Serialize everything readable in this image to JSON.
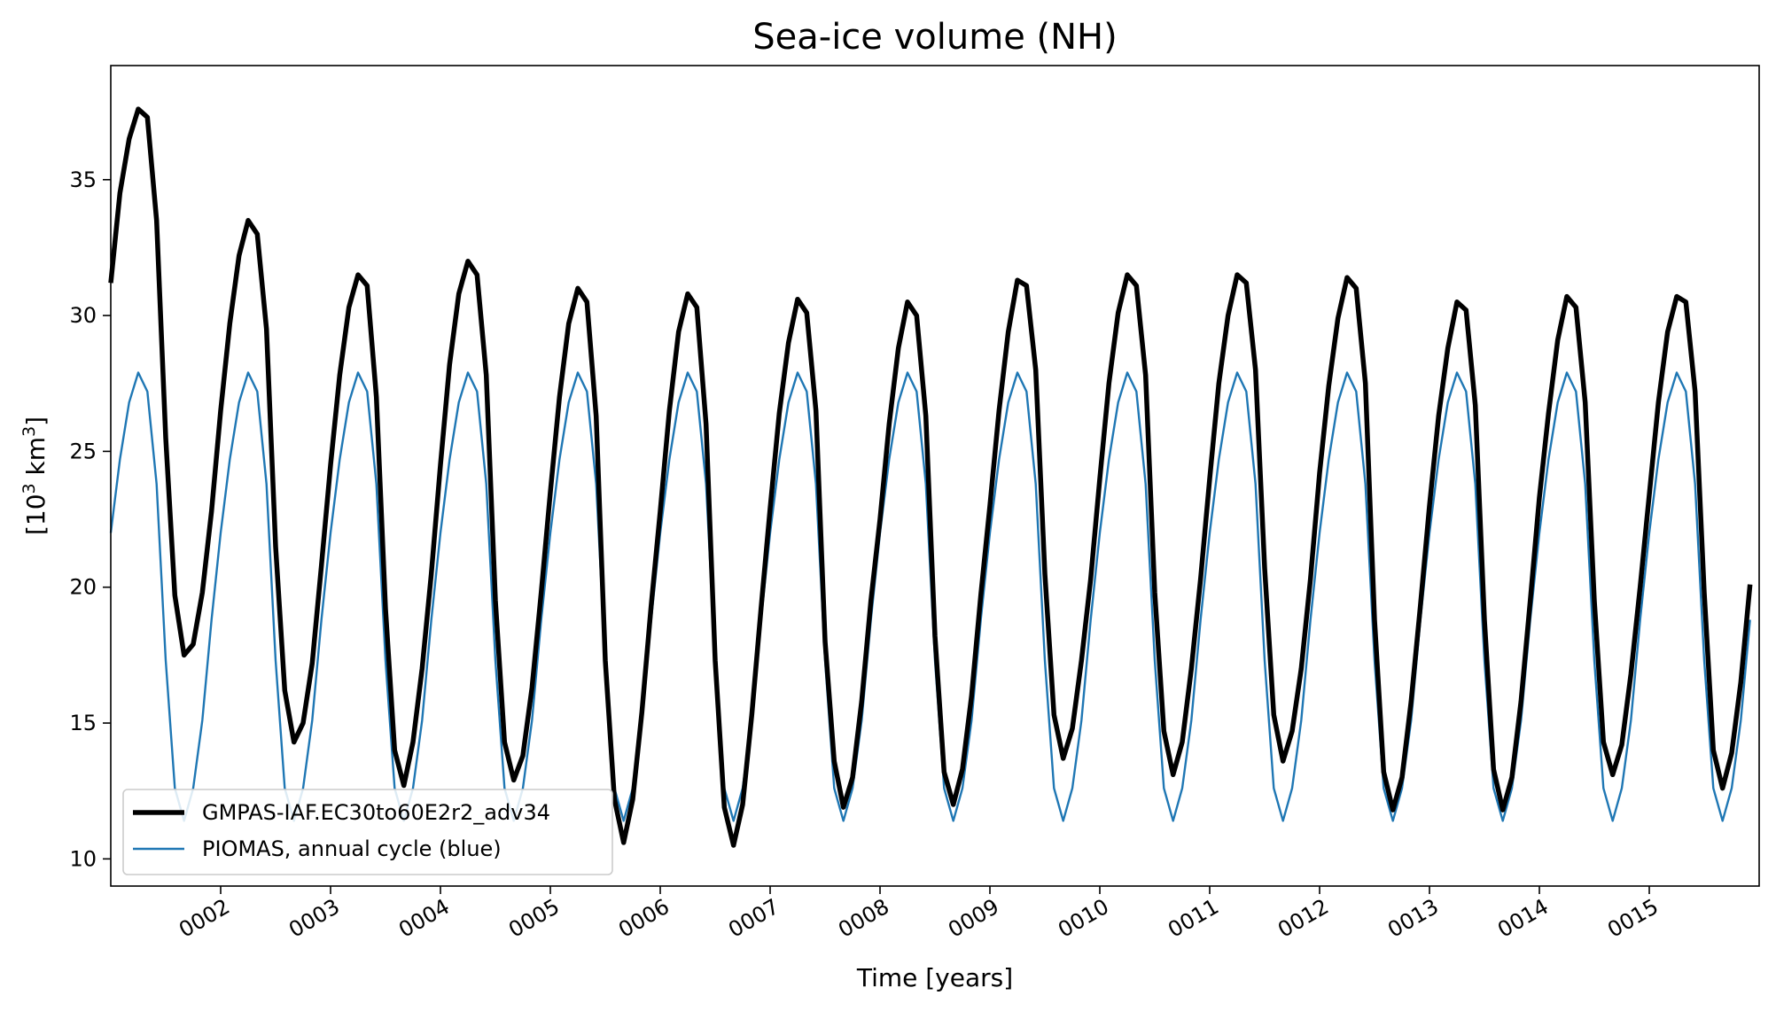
{
  "chart_data": {
    "type": "line",
    "title": "Sea-ice volume (NH)",
    "xlabel": "Time [years]",
    "ylabel_main": "[10",
    "ylabel_sup": "3",
    "ylabel_tail": " km",
    "ylabel_sup2": "3",
    "ylabel_close": "]",
    "xlim": [
      1.0,
      16.0
    ],
    "ylim": [
      9.0,
      39.2
    ],
    "y_ticks": [
      10,
      15,
      20,
      25,
      30,
      35
    ],
    "x_ticks": [
      {
        "value": 2,
        "label": "0002"
      },
      {
        "value": 3,
        "label": "0003"
      },
      {
        "value": 4,
        "label": "0004"
      },
      {
        "value": 5,
        "label": "0005"
      },
      {
        "value": 6,
        "label": "0006"
      },
      {
        "value": 7,
        "label": "0007"
      },
      {
        "value": 8,
        "label": "0008"
      },
      {
        "value": 9,
        "label": "0009"
      },
      {
        "value": 10,
        "label": "0010"
      },
      {
        "value": 11,
        "label": "0011"
      },
      {
        "value": 12,
        "label": "0012"
      },
      {
        "value": 13,
        "label": "0013"
      },
      {
        "value": 14,
        "label": "0014"
      },
      {
        "value": 15,
        "label": "0015"
      }
    ],
    "grid": false,
    "legend_position": "lower-left",
    "months_per_year": 12,
    "start_year": 1.0,
    "series": [
      {
        "name": "GMPAS-IAF.EC30to60E2r2_adv34",
        "color": "#000000",
        "style": "thick",
        "yearly_values": [
          [
            31.2,
            34.5,
            36.5,
            37.6,
            37.3,
            33.5,
            25.5,
            19.7,
            17.5,
            17.9,
            19.8,
            22.8
          ],
          [
            26.5,
            29.7,
            32.2,
            33.5,
            33.0,
            29.5,
            21.5,
            16.2,
            14.3,
            15.0,
            17.2,
            20.8
          ],
          [
            24.5,
            27.8,
            30.3,
            31.5,
            31.1,
            27.0,
            19.2,
            14.0,
            12.7,
            14.3,
            17.0,
            20.5
          ],
          [
            24.5,
            28.2,
            30.8,
            32.0,
            31.5,
            27.8,
            19.5,
            14.3,
            12.9,
            13.8,
            16.3,
            19.8
          ],
          [
            23.5,
            27.0,
            29.7,
            31.0,
            30.5,
            26.3,
            17.3,
            12.2,
            10.6,
            12.2,
            15.4,
            19.3
          ],
          [
            22.8,
            26.5,
            29.4,
            30.8,
            30.3,
            26.0,
            17.3,
            11.9,
            10.5,
            12.0,
            15.3,
            19.2
          ],
          [
            22.9,
            26.4,
            29.0,
            30.6,
            30.1,
            26.5,
            18.0,
            13.6,
            11.9,
            13.0,
            15.8,
            19.5
          ],
          [
            22.5,
            26.0,
            28.8,
            30.5,
            30.0,
            26.3,
            18.2,
            13.2,
            12.0,
            13.3,
            16.0,
            19.7
          ],
          [
            23.0,
            26.5,
            29.4,
            31.3,
            31.1,
            28.0,
            20.5,
            15.3,
            13.7,
            14.8,
            17.3,
            20.3
          ],
          [
            24.0,
            27.5,
            30.1,
            31.5,
            31.1,
            27.8,
            19.8,
            14.7,
            13.1,
            14.3,
            17.0,
            20.3
          ],
          [
            24.0,
            27.5,
            30.0,
            31.5,
            31.2,
            28.0,
            20.7,
            15.3,
            13.6,
            14.7,
            17.0,
            20.3
          ],
          [
            24.2,
            27.4,
            29.9,
            31.4,
            31.0,
            27.5,
            18.8,
            13.2,
            11.8,
            13.0,
            15.8,
            19.3
          ],
          [
            23.0,
            26.3,
            28.8,
            30.5,
            30.2,
            26.7,
            18.8,
            13.3,
            11.8,
            13.0,
            15.8,
            19.5
          ],
          [
            23.3,
            26.4,
            29.1,
            30.7,
            30.3,
            26.8,
            19.5,
            14.3,
            13.1,
            14.2,
            16.8,
            20.0
          ],
          [
            23.4,
            26.8,
            29.4,
            30.7,
            30.5,
            27.2,
            19.8,
            14.0,
            12.6,
            13.9,
            16.5,
            20.1
          ]
        ]
      },
      {
        "name": "PIOMAS, annual cycle (blue)",
        "color": "#1f77b4",
        "style": "thin",
        "annual_cycle": [
          22.0,
          24.7,
          26.8,
          27.9,
          27.2,
          23.8,
          17.3,
          12.6,
          11.4,
          12.6,
          15.1,
          18.8
        ],
        "years": 15
      }
    ]
  }
}
